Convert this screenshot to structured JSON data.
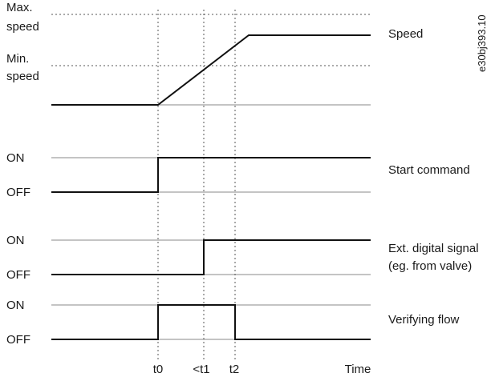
{
  "speed_plot": {
    "max_label_1": "Max.",
    "max_label_2": "speed",
    "min_label_1": "Min.",
    "min_label_2": "speed",
    "trace_label": "Speed"
  },
  "doc_id": "e30bj393.10",
  "signals": [
    {
      "on": "ON",
      "off": "OFF",
      "label_1": "Start command",
      "label_2": ""
    },
    {
      "on": "ON",
      "off": "OFF",
      "label_1": "Ext. digital signal",
      "label_2": "(eg. from valve)"
    },
    {
      "on": "ON",
      "off": "OFF",
      "label_1": "Verifying flow",
      "label_2": ""
    }
  ],
  "time_axis": {
    "t0": "t0",
    "t1": "<t1",
    "t2": "t2",
    "axis_label": "Time"
  }
}
